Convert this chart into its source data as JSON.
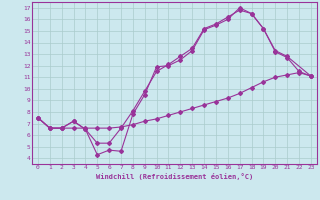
{
  "bg_color": "#cce8ee",
  "grid_color": "#aacccc",
  "line_color": "#993399",
  "spine_color": "#993399",
  "tick_color": "#993399",
  "xlabel": "Windchill (Refroidissement éolien,°C)",
  "xlim": [
    -0.5,
    23.5
  ],
  "ylim": [
    3.5,
    17.5
  ],
  "xticks": [
    0,
    1,
    2,
    3,
    4,
    5,
    6,
    7,
    8,
    9,
    10,
    11,
    12,
    13,
    14,
    15,
    16,
    17,
    18,
    19,
    20,
    21,
    22,
    23
  ],
  "yticks": [
    4,
    5,
    6,
    7,
    8,
    9,
    10,
    11,
    12,
    13,
    14,
    15,
    16,
    17
  ],
  "line1_x": [
    0,
    1,
    2,
    3,
    4,
    5,
    6,
    7,
    8,
    9,
    10,
    11,
    12,
    13,
    14,
    15,
    16,
    17,
    18,
    19,
    20,
    21,
    23
  ],
  "line1_y": [
    7.5,
    6.6,
    6.6,
    7.2,
    6.5,
    4.3,
    4.7,
    4.6,
    7.8,
    9.5,
    11.9,
    12.0,
    12.5,
    13.3,
    15.1,
    15.5,
    16.0,
    17.0,
    16.5,
    15.2,
    13.3,
    12.8,
    11.1
  ],
  "line2_x": [
    0,
    1,
    2,
    3,
    4,
    5,
    6,
    7,
    8,
    9,
    10,
    11,
    12,
    13,
    14,
    15,
    16,
    17,
    18,
    19,
    20,
    21,
    22,
    23
  ],
  "line2_y": [
    7.5,
    6.6,
    6.6,
    7.2,
    6.5,
    5.3,
    5.3,
    6.6,
    8.1,
    9.8,
    11.5,
    12.1,
    12.8,
    13.5,
    15.2,
    15.6,
    16.2,
    16.8,
    16.5,
    15.2,
    13.2,
    12.7,
    11.5,
    11.1
  ],
  "line3_x": [
    0,
    1,
    2,
    3,
    4,
    5,
    6,
    7,
    8,
    9,
    10,
    11,
    12,
    13,
    14,
    15,
    16,
    17,
    18,
    19,
    20,
    21,
    22,
    23
  ],
  "line3_y": [
    7.5,
    6.6,
    6.6,
    6.6,
    6.6,
    6.6,
    6.6,
    6.7,
    6.9,
    7.2,
    7.4,
    7.7,
    8.0,
    8.3,
    8.6,
    8.9,
    9.2,
    9.6,
    10.1,
    10.6,
    11.0,
    11.2,
    11.4,
    11.1
  ]
}
